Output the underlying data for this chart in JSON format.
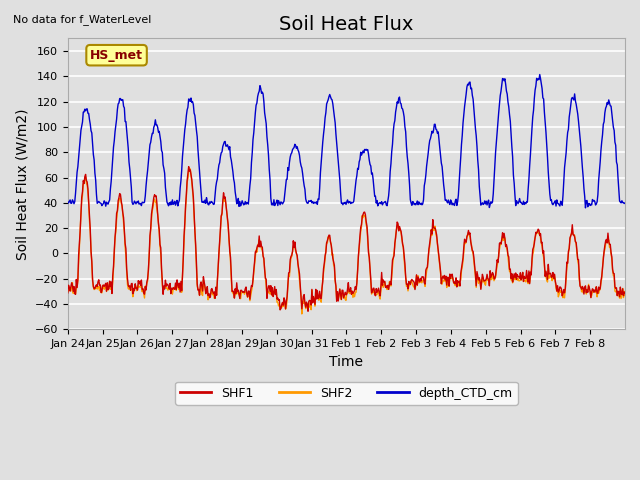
{
  "title": "Soil Heat Flux",
  "subtitle": "No data for f_WaterLevel",
  "ylabel": "Soil Heat Flux (W/m2)",
  "xlabel": "Time",
  "ylim": [
    -60,
    170
  ],
  "yticks": [
    -60,
    -40,
    -20,
    0,
    20,
    40,
    60,
    80,
    100,
    120,
    140,
    160
  ],
  "background_color": "#e0e0e0",
  "plot_bg_color": "#e0e0e0",
  "grid_color": "white",
  "shf1_color": "#cc0000",
  "shf2_color": "#ff9900",
  "depth_color": "#0000cc",
  "legend_items": [
    "SHF1",
    "SHF2",
    "depth_CTD_cm"
  ],
  "hs_met_label": "HS_met",
  "hs_met_bg": "#ffff99",
  "hs_met_border": "#aa8800",
  "hs_met_text_color": "#880000",
  "n_points": 720,
  "n_days": 16,
  "xtick_positions": [
    0,
    1,
    2,
    3,
    4,
    5,
    6,
    7,
    8,
    9,
    10,
    11,
    12,
    13,
    14,
    15
  ],
  "xtick_labels": [
    "Jan 24",
    "Jan 25",
    "Jan 26",
    "Jan 27",
    "Jan 28",
    "Jan 29",
    "Jan 30",
    "Jan 31",
    "Feb 1",
    "Feb 2",
    "Feb 3",
    "Feb 4",
    "Feb 5",
    "Feb 6",
    "Feb 7",
    "Feb 8"
  ],
  "title_fontsize": 14,
  "axis_label_fontsize": 10,
  "tick_fontsize": 8,
  "legend_fontsize": 9
}
